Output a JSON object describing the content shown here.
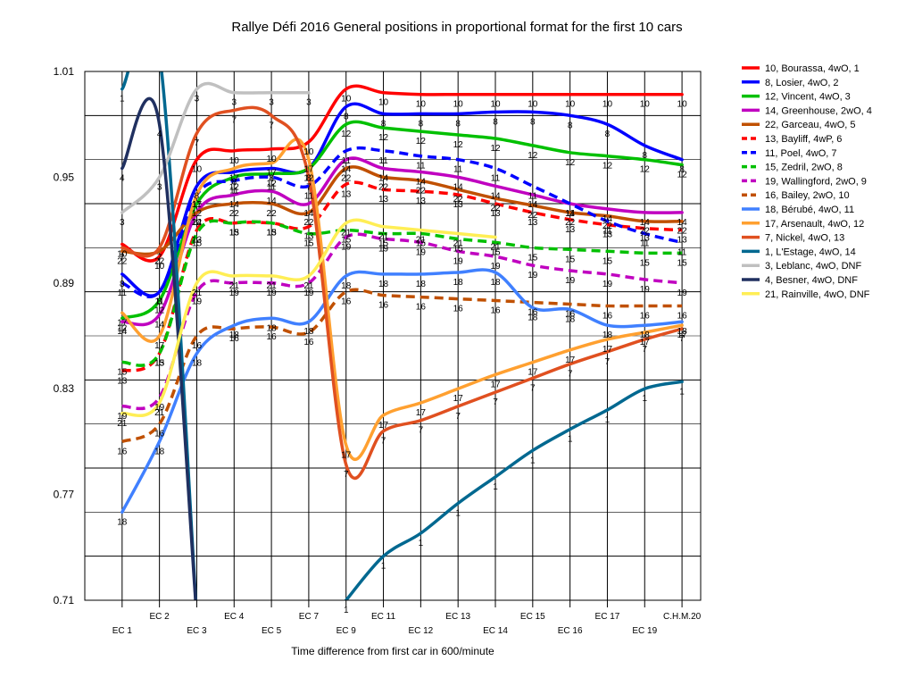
{
  "chart_data": {
    "type": "line",
    "title": "Rallye Défi 2016  General positions in proportional format for the first 10 cars",
    "subtitle": "",
    "xlabel": "Time difference from first car in 600/minute",
    "ylabel": "",
    "ylim": [
      0.71,
      1.01
    ],
    "yticks": [
      "1.01",
      "0.95",
      "0.89",
      "0.83",
      "0.77",
      "0.71"
    ],
    "grid": true,
    "legend_position": "right",
    "x_labels": [
      "EC 1",
      "EC 2",
      "EC 3",
      "EC 4",
      "EC 5",
      "EC 7",
      "EC 9",
      "EC 11",
      "EC 12",
      "EC 13",
      "EC 14",
      "EC 15",
      "EC 16",
      "EC 17",
      "EC 19",
      "C.H.M.20"
    ],
    "series": [
      {
        "name": "10, Bourassa, 4wO, 1",
        "marker": "10",
        "color": "#ff0000",
        "dashed": false,
        "values": [
          0.912,
          0.905,
          0.96,
          0.965,
          0.966,
          0.97,
          1.0,
          0.998,
          0.997,
          0.997,
          0.997,
          0.997,
          0.997,
          0.997,
          0.997,
          0.997
        ]
      },
      {
        "name": "8, Losier, 4wO, 2",
        "marker": "8",
        "color": "#0000ff",
        "dashed": false,
        "values": [
          0.895,
          0.885,
          0.945,
          0.953,
          0.955,
          0.955,
          0.99,
          0.986,
          0.986,
          0.986,
          0.987,
          0.987,
          0.985,
          0.98,
          0.968,
          0.96
        ]
      },
      {
        "name": "12, Vincent, 4wO, 3",
        "marker": "12",
        "color": "#00c000",
        "dashed": false,
        "values": [
          0.87,
          0.88,
          0.935,
          0.95,
          0.952,
          0.955,
          0.98,
          0.978,
          0.976,
          0.974,
          0.972,
          0.968,
          0.964,
          0.962,
          0.96,
          0.957
        ]
      },
      {
        "name": "14, Greenhouse, 2wO, 4",
        "marker": "14",
        "color": "#c000c0",
        "dashed": false,
        "values": [
          0.868,
          0.872,
          0.93,
          0.94,
          0.942,
          0.935,
          0.96,
          0.955,
          0.953,
          0.95,
          0.945,
          0.94,
          0.935,
          0.932,
          0.93,
          0.93
        ]
      },
      {
        "name": "22, Garceau, 4wO, 5",
        "marker": "22",
        "color": "#c05000",
        "dashed": false,
        "values": [
          0.908,
          0.908,
          0.93,
          0.935,
          0.935,
          0.93,
          0.955,
          0.95,
          0.948,
          0.943,
          0.938,
          0.934,
          0.93,
          0.928,
          0.925,
          0.925
        ]
      },
      {
        "name": "13, Bayliff, 4wP, 6",
        "marker": "13",
        "color": "#ff0000",
        "dashed": true,
        "values": [
          0.84,
          0.85,
          0.92,
          0.924,
          0.924,
          0.922,
          0.946,
          0.943,
          0.942,
          0.94,
          0.935,
          0.93,
          0.926,
          0.923,
          0.921,
          0.92
        ]
      },
      {
        "name": "11, Poel, 4wO, 7",
        "marker": "11",
        "color": "#0000ff",
        "dashed": true,
        "values": [
          0.89,
          0.885,
          0.94,
          0.948,
          0.95,
          0.945,
          0.965,
          0.965,
          0.962,
          0.96,
          0.955,
          0.945,
          0.935,
          0.925,
          0.918,
          0.913
        ]
      },
      {
        "name": "15, Zedril, 2wO, 8",
        "marker": "15",
        "color": "#00c000",
        "dashed": true,
        "values": [
          0.845,
          0.85,
          0.918,
          0.924,
          0.924,
          0.918,
          0.92,
          0.918,
          0.918,
          0.915,
          0.913,
          0.91,
          0.909,
          0.908,
          0.907,
          0.907
        ]
      },
      {
        "name": "19, Wallingford, 2wO, 9",
        "marker": "19",
        "color": "#c000c0",
        "dashed": true,
        "values": [
          0.82,
          0.825,
          0.885,
          0.89,
          0.89,
          0.89,
          0.916,
          0.915,
          0.913,
          0.908,
          0.905,
          0.9,
          0.897,
          0.895,
          0.892,
          0.89
        ]
      },
      {
        "name": "16, Bailey, 2wO, 10",
        "marker": "16",
        "color": "#c05000",
        "dashed": true,
        "values": [
          0.8,
          0.81,
          0.86,
          0.864,
          0.865,
          0.862,
          0.885,
          0.883,
          0.882,
          0.881,
          0.88,
          0.879,
          0.878,
          0.877,
          0.877,
          0.877
        ]
      },
      {
        "name": "18, Bérubé, 4wO, 11",
        "marker": "18",
        "color": "#4080ff",
        "dashed": false,
        "values": [
          0.76,
          0.8,
          0.85,
          0.866,
          0.87,
          0.868,
          0.894,
          0.895,
          0.895,
          0.896,
          0.896,
          0.876,
          0.875,
          0.866,
          0.866,
          0.868
        ]
      },
      {
        "name": "17, Arsenault, 4wO, 12",
        "marker": "17",
        "color": "#ffa030",
        "dashed": false,
        "values": [
          0.873,
          0.86,
          0.94,
          0.955,
          0.958,
          0.96,
          0.798,
          0.815,
          0.822,
          0.83,
          0.838,
          0.845,
          0.852,
          0.858,
          0.862,
          0.866
        ]
      },
      {
        "name": "7, Nickel, 4wO, 13",
        "marker": "7",
        "color": "#e05020",
        "dashed": false,
        "values": [
          0.91,
          0.91,
          0.975,
          0.988,
          0.985,
          0.95,
          0.787,
          0.806,
          0.812,
          0.82,
          0.828,
          0.836,
          0.844,
          0.851,
          0.858,
          0.864
        ]
      },
      {
        "name": "1, L'Estage, 4wO, 14",
        "marker": "1",
        "color": "#006890",
        "dashed": false,
        "values": [
          1.0,
          1.02,
          0.7,
          null,
          null,
          null,
          0.71,
          0.735,
          0.748,
          0.765,
          0.78,
          0.795,
          0.807,
          0.818,
          0.83,
          0.834
        ]
      },
      {
        "name": "3, Leblanc, 4wO, DNF",
        "marker": "3",
        "color": "#c0c0c0",
        "dashed": false,
        "values": [
          0.93,
          0.95,
          1.0,
          0.998,
          0.998,
          0.998,
          null,
          null,
          null,
          null,
          null,
          null,
          null,
          null,
          null,
          null
        ]
      },
      {
        "name": "4, Besner, 4wO, DNF",
        "marker": "4",
        "color": "#203060",
        "dashed": false,
        "values": [
          0.955,
          0.98,
          0.7,
          null,
          null,
          null,
          null,
          null,
          null,
          null,
          null,
          null,
          null,
          null,
          null,
          null
        ]
      },
      {
        "name": "21, Rainville, 4wO, DNF",
        "marker": "21",
        "color": "#ffee55",
        "dashed": false,
        "values": [
          0.816,
          0.822,
          0.89,
          0.894,
          0.894,
          0.894,
          0.924,
          0.922,
          0.92,
          0.918,
          0.916,
          null,
          null,
          null,
          null,
          null
        ]
      }
    ]
  }
}
